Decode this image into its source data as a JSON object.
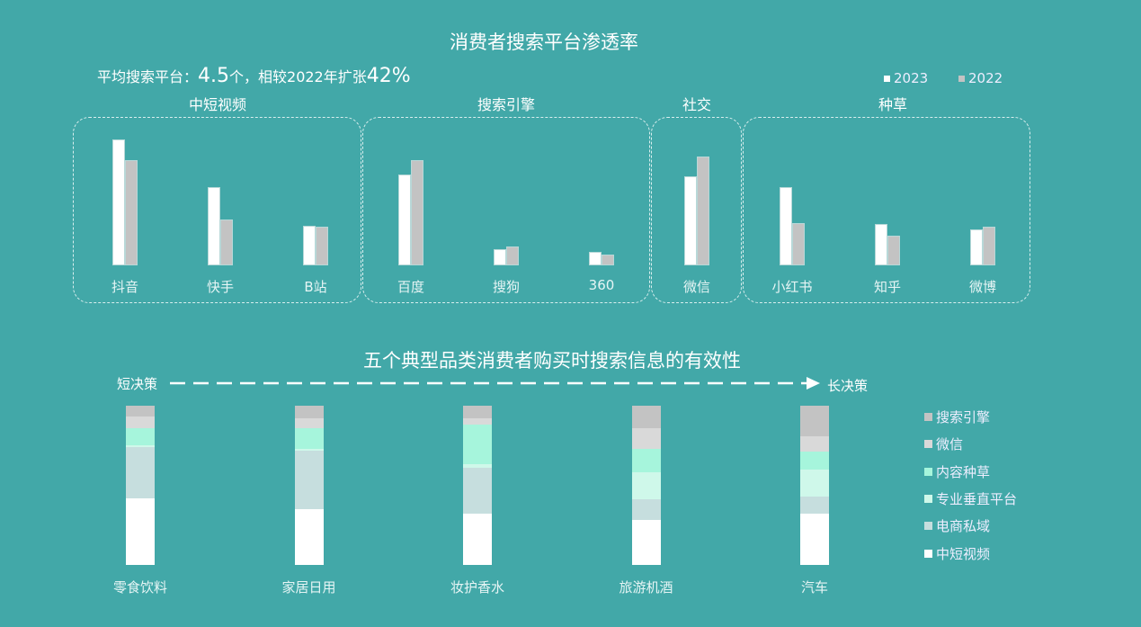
{
  "chart_data": [
    {
      "type": "bar",
      "title": "消费者搜索平台渗透率",
      "subtitle": {
        "prefix": "平均搜索平台：",
        "value": "4.5",
        "mid": "个，相较2022年扩张",
        "pct": "42%"
      },
      "groups": [
        {
          "name": "中短视频",
          "categories": [
            "抖音",
            "快手",
            "B站"
          ]
        },
        {
          "name": "搜索引擎",
          "categories": [
            "百度",
            "搜狗",
            "360"
          ]
        },
        {
          "name": "社交",
          "categories": [
            "微信"
          ]
        },
        {
          "name": "种草",
          "categories": [
            "小红书",
            "知乎",
            "微博"
          ]
        }
      ],
      "categories": [
        "抖音",
        "快手",
        "B站",
        "百度",
        "搜狗",
        "360",
        "微信",
        "小红书",
        "知乎",
        "微博"
      ],
      "series": [
        {
          "name": "2023",
          "color": "#ffffff",
          "values": [
            140,
            87,
            44,
            101,
            18,
            15,
            99,
            87,
            46,
            40
          ]
        },
        {
          "name": "2022",
          "color": "#c3c3c3",
          "values": [
            117,
            51,
            43,
            117,
            21,
            12,
            121,
            47,
            33,
            43
          ]
        }
      ],
      "ylim": [
        0,
        150
      ],
      "legend": "top-right",
      "grid": false
    },
    {
      "type": "bar",
      "stacked": true,
      "title": "五个典型品类消费者购买时搜索信息的有效性",
      "arrow": {
        "start": "短决策",
        "end": "长决策"
      },
      "categories": [
        "零食饮料",
        "家居日用",
        "妆护香水",
        "旅游机酒",
        "汽车"
      ],
      "series": [
        {
          "name": "中短视频",
          "color": "#ffffff",
          "values": [
            42,
            35,
            32,
            28,
            32
          ]
        },
        {
          "name": "电商私域",
          "color": "#c6dede",
          "values": [
            32,
            37,
            29,
            13,
            11
          ]
        },
        {
          "name": "专业垂直平台",
          "color": "#cff8ea",
          "values": [
            1,
            1,
            2,
            17,
            17
          ]
        },
        {
          "name": "内容种草",
          "color": "#a6f5dc",
          "values": [
            11,
            13,
            25,
            15,
            11
          ]
        },
        {
          "name": "微信",
          "color": "#d9d9d9",
          "values": [
            7,
            6,
            4,
            13,
            10
          ]
        },
        {
          "name": "搜索引擎",
          "color": "#c3c3c3",
          "values": [
            7,
            8,
            8,
            14,
            19
          ]
        }
      ],
      "ylim": [
        0,
        100
      ],
      "legend": "right",
      "grid": false
    }
  ]
}
